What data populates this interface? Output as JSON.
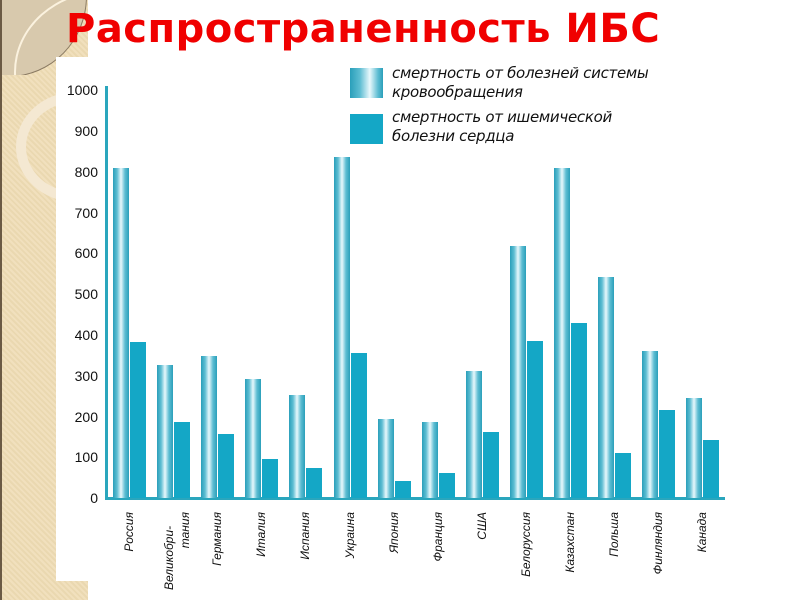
{
  "slide": {
    "title": "Распространенность ИБС"
  },
  "legend": {
    "items": [
      {
        "line1": "смертность от болезней системы",
        "line2": "кровообращения",
        "style": "light-gradient"
      },
      {
        "line1": "смертность от ишемической",
        "line2": "болезни сердца",
        "style": "solid"
      }
    ]
  },
  "y_ticks": [
    "1000",
    "900",
    "800",
    "700",
    "600",
    "500",
    "400",
    "300",
    "200",
    "100",
    "0"
  ],
  "x_labels": [
    "Россия",
    "Великобри-тания",
    "Германия",
    "Италия",
    "Испания",
    "Украина",
    "Япония",
    "Франция",
    "США",
    "Белоруссия",
    "Казахстан",
    "Польша",
    "Финляндия",
    "Канада"
  ],
  "x_labels_split": {
    "uk_line1": "Великобри-",
    "uk_line2": "тания"
  },
  "colors": {
    "title": "#f00000",
    "series_circulatory": "#5dbdd2",
    "series_ihd": "#14a7c6",
    "axis": "#2aa6bd"
  },
  "chart_data": {
    "type": "bar",
    "title": "Распространенность ИБС",
    "xlabel": "",
    "ylabel": "",
    "ylim": [
      0,
      1000
    ],
    "yticks": [
      0,
      100,
      200,
      300,
      400,
      500,
      600,
      700,
      800,
      900,
      1000
    ],
    "grid": false,
    "legend_position": "top-right",
    "categories": [
      "Россия",
      "Великобритания",
      "Германия",
      "Италия",
      "Испания",
      "Украина",
      "Япония",
      "Франция",
      "США",
      "Белоруссия",
      "Казахстан",
      "Польша",
      "Финляндия",
      "Канада"
    ],
    "series": [
      {
        "name": "смертность от болезней системы кровообращения",
        "values": [
          810,
          325,
          348,
          292,
          252,
          836,
          194,
          186,
          311,
          618,
          808,
          542,
          360,
          245
        ]
      },
      {
        "name": "смертность от ишемической болезни сердца",
        "values": [
          382,
          186,
          157,
          96,
          74,
          355,
          42,
          61,
          162,
          385,
          428,
          110,
          216,
          142
        ]
      }
    ]
  }
}
